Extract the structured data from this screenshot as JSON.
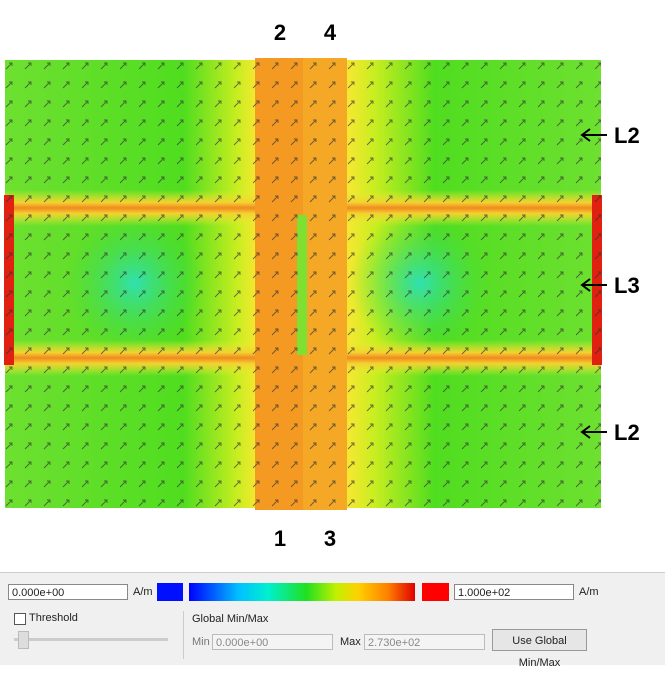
{
  "plot": {
    "top_labels": [
      "2",
      "4"
    ],
    "bottom_labels": [
      "1",
      "3"
    ],
    "side_labels": [
      "L2",
      "L3",
      "L2"
    ]
  },
  "colorbar": {
    "min_value": "0.000e+00",
    "min_unit": "A/m",
    "max_value": "1.000e+02",
    "max_unit": "A/m"
  },
  "threshold": {
    "label": "Threshold"
  },
  "global": {
    "title": "Global Min/Max",
    "min_label": "Min",
    "min_value": "0.000e+00",
    "max_label": "Max",
    "max_value": "2.730e+02",
    "button": "Use Global Min/Max"
  }
}
